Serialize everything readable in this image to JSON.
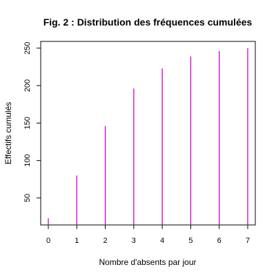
{
  "chart_data": {
    "type": "bar",
    "title": "Fig. 2 : Distribution des fréquences cumulées",
    "xlabel": "Nombre d'absents par jour",
    "ylabel": "Effectifs cumulés",
    "x": [
      0,
      1,
      2,
      3,
      4,
      5,
      6,
      7
    ],
    "values": [
      23,
      80,
      146,
      196,
      223,
      239,
      246,
      250
    ],
    "xlim": [
      0,
      7
    ],
    "ylim": [
      14,
      259
    ],
    "yticks": [
      50,
      100,
      150,
      200,
      250
    ],
    "xticks": [
      0,
      1,
      2,
      3,
      4,
      5,
      6,
      7
    ],
    "bar_color": "#cc00cc",
    "grid": false,
    "legend": "none"
  }
}
